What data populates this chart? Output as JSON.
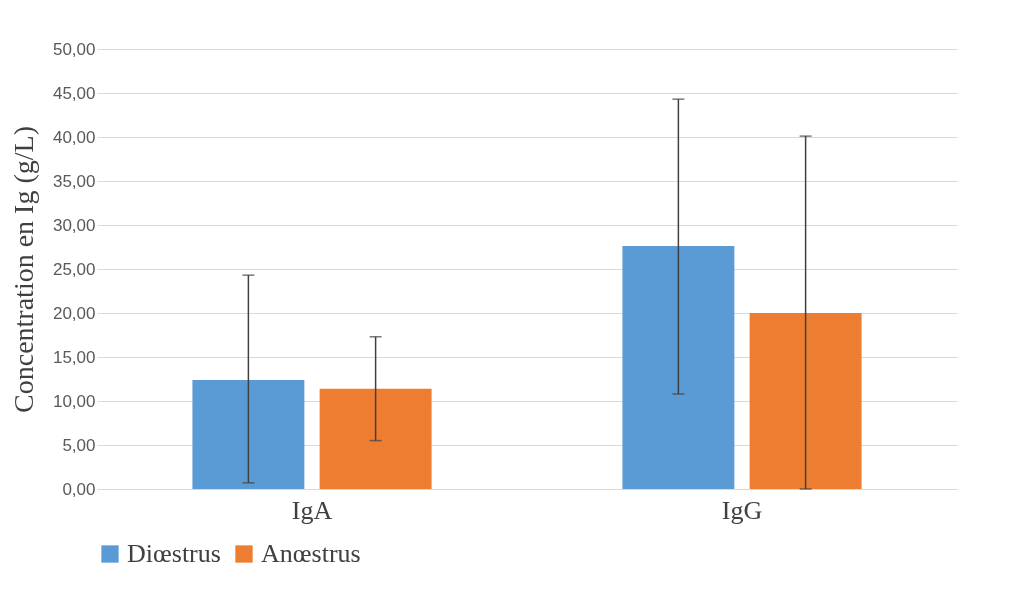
{
  "chart_data": {
    "type": "bar",
    "ylabel": "Concentration en Ig (g/L)",
    "categories": [
      "IgA",
      "IgG"
    ],
    "series": [
      {
        "name": "Diœstrus",
        "color": "#5b9bd5",
        "values": [
          12.4,
          27.6
        ],
        "errors": [
          [
            0.7,
            24.3
          ],
          [
            10.8,
            44.3
          ]
        ]
      },
      {
        "name": "Anœstrus",
        "color": "#ed7d31",
        "values": [
          11.4,
          20.0
        ],
        "errors": [
          [
            5.5,
            17.3
          ],
          [
            0.0,
            40.1
          ]
        ]
      }
    ],
    "ylim": [
      0,
      50
    ],
    "yticks": [
      {
        "value": 0,
        "label": "0,00"
      },
      {
        "value": 5,
        "label": "5,00"
      },
      {
        "value": 10,
        "label": "10,00"
      },
      {
        "value": 15,
        "label": "15,00"
      },
      {
        "value": 20,
        "label": "20,00"
      },
      {
        "value": 25,
        "label": "25,00"
      },
      {
        "value": 30,
        "label": "30,00"
      },
      {
        "value": 35,
        "label": "35,00"
      },
      {
        "value": 40,
        "label": "40,00"
      },
      {
        "value": 45,
        "label": "45,00"
      },
      {
        "value": 50,
        "label": "50,00"
      }
    ],
    "grid": "y",
    "legend": "bottom"
  }
}
